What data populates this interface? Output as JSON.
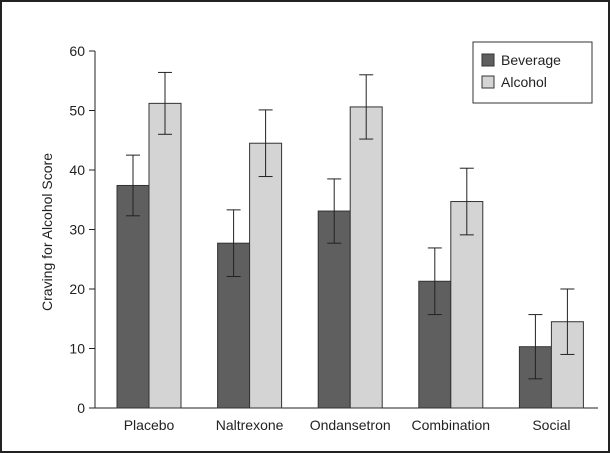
{
  "chart_data": {
    "type": "bar",
    "title": "",
    "xlabel": "",
    "ylabel": "Craving for Alcohol Score",
    "ylim": [
      0,
      60
    ],
    "yticks": [
      0,
      10,
      20,
      30,
      40,
      50,
      60
    ],
    "categories": [
      "Placebo",
      "Naltrexone",
      "Ondansetron",
      "Combination",
      "Social"
    ],
    "series": [
      {
        "name": "Beverage",
        "color": "#5f5f5f",
        "values": [
          37.4,
          27.7,
          33.1,
          21.3,
          10.3
        ],
        "error": [
          5.1,
          5.6,
          5.4,
          5.6,
          5.4
        ]
      },
      {
        "name": "Alcohol",
        "color": "#d4d4d4",
        "values": [
          51.2,
          44.5,
          50.6,
          34.7,
          14.5
        ],
        "error": [
          5.2,
          5.6,
          5.4,
          5.6,
          5.5
        ]
      }
    ],
    "legend_position": "top-right",
    "grid": false
  }
}
